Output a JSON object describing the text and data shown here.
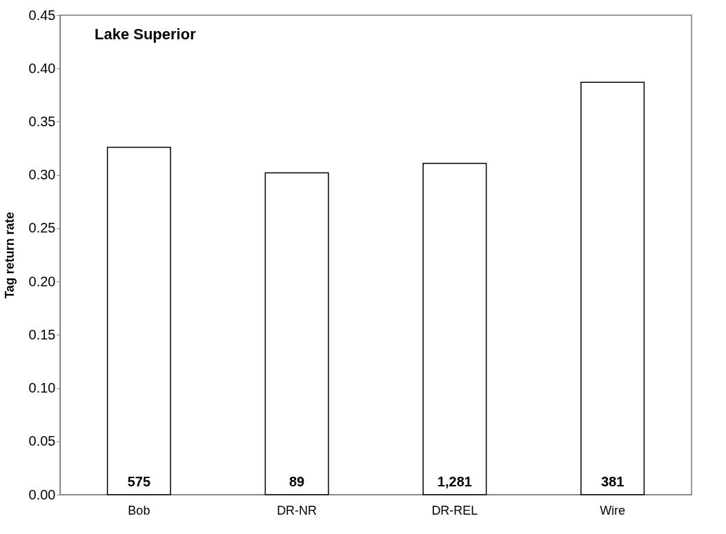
{
  "chart_data": {
    "type": "bar",
    "title": "Lake Superior",
    "ylabel": "Tag return rate",
    "categories": [
      "Bob",
      "DR-NR",
      "DR-REL",
      "Wire"
    ],
    "values": [
      0.326,
      0.302,
      0.311,
      0.387
    ],
    "color": "#ffffff",
    "ylim": [
      0,
      0.45
    ],
    "yticks": [
      {
        "value": 0,
        "label": "0.00"
      },
      0.05,
      {
        "value": 0.1,
        "label": "0.10"
      },
      0.15,
      {
        "value": 0.2,
        "label": "0.20"
      },
      0.25,
      {
        "value": 0.3,
        "label": "0.30"
      },
      0.35,
      {
        "value": 0.4,
        "label": "0.40"
      },
      0.45
    ],
    "annotations": [
      "575",
      "89",
      "1,281",
      "381"
    ],
    "grid": false
  }
}
